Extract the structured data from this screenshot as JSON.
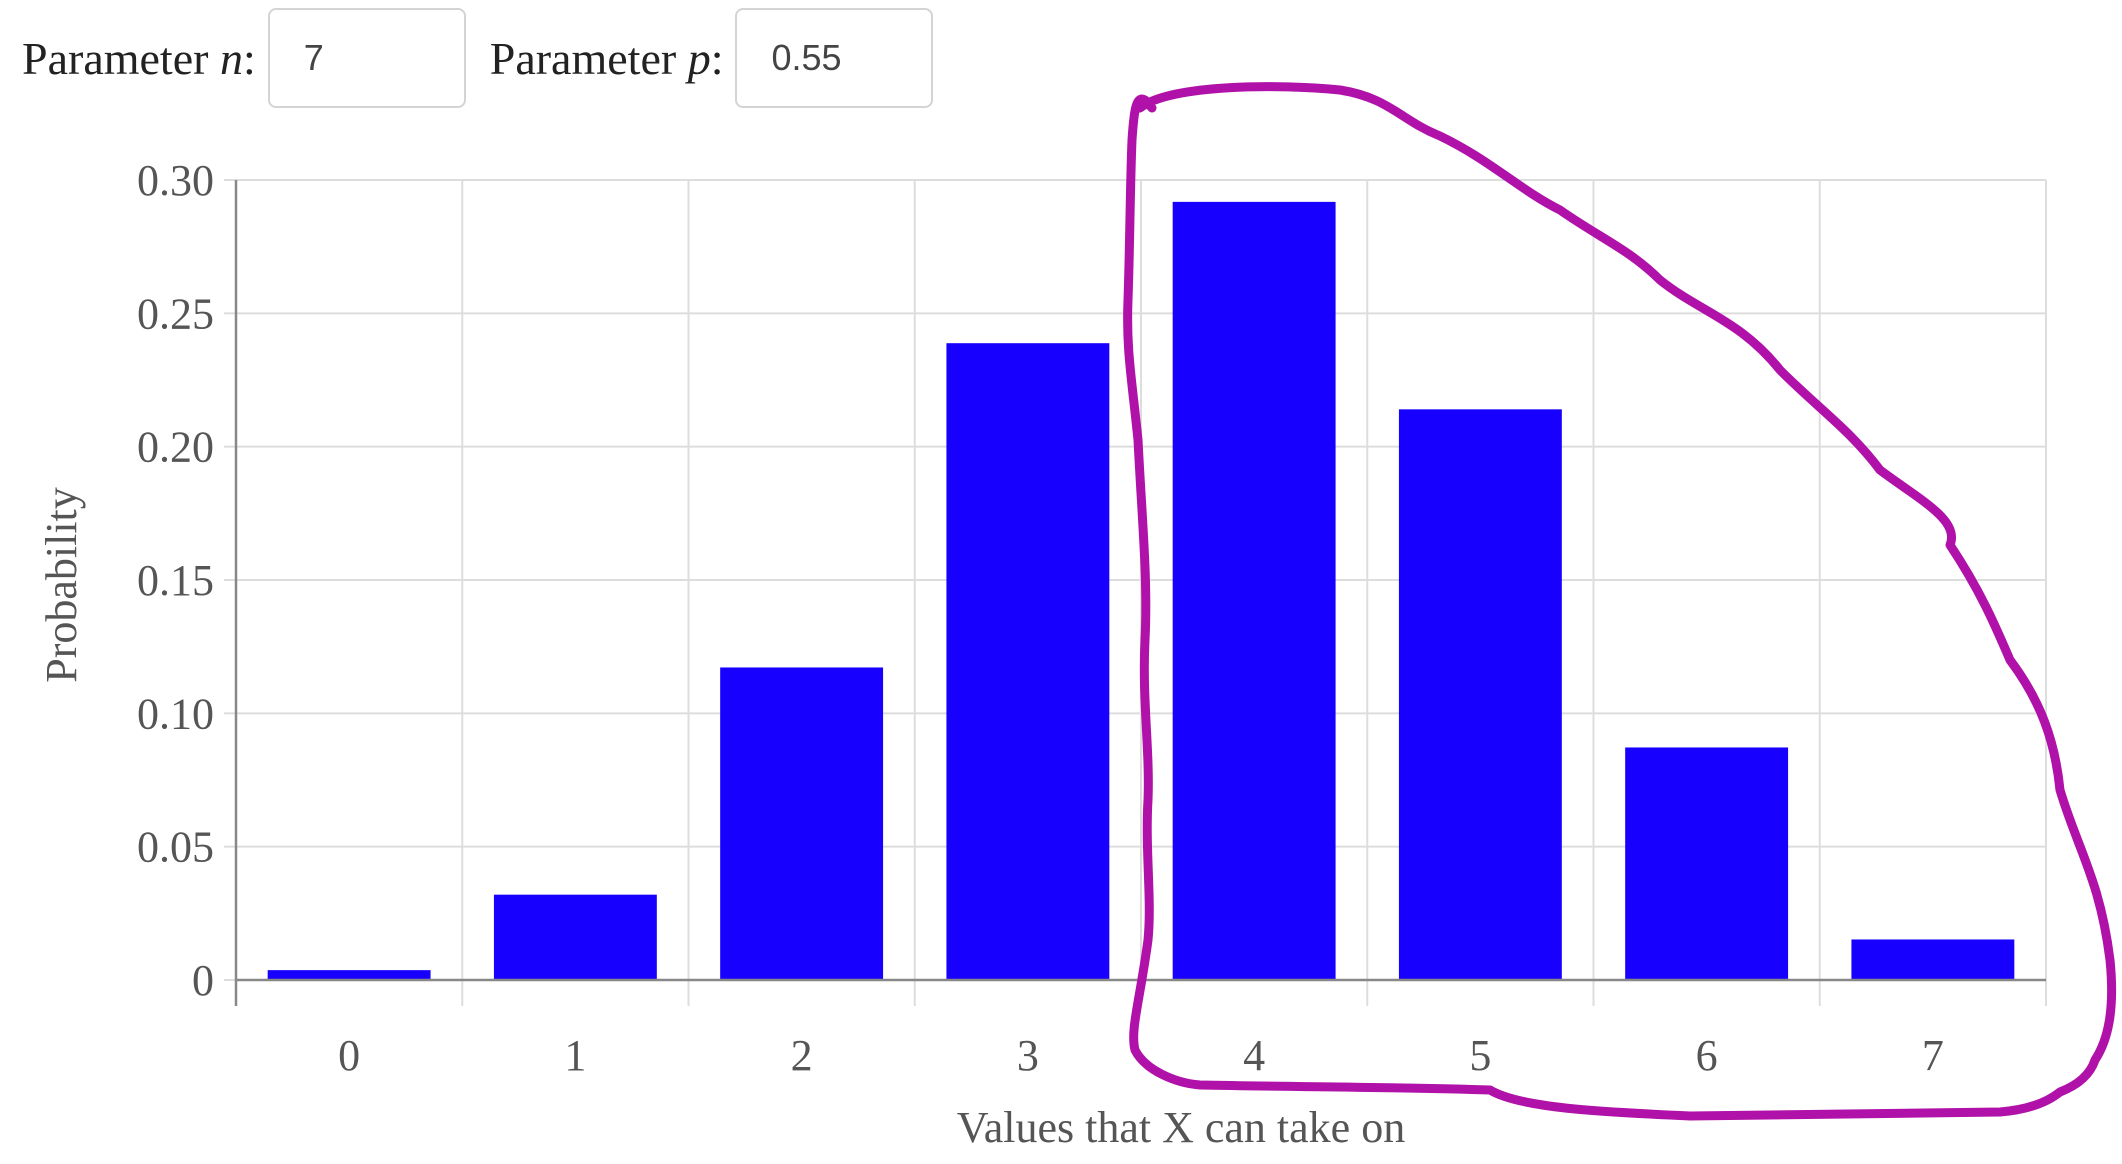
{
  "controls": {
    "n_label_prefix": "Parameter ",
    "n_label_var": "n",
    "n_label_suffix": ":",
    "n_value": "7",
    "p_label_prefix": "Parameter ",
    "p_label_var": "p",
    "p_label_suffix": ":",
    "p_value": "0.55"
  },
  "colors": {
    "bar": "#1800ff",
    "grid": "#dddddd",
    "axis": "#888888",
    "annotation": "#b011a8"
  },
  "chart_data": {
    "type": "bar",
    "categories": [
      "0",
      "1",
      "2",
      "3",
      "4",
      "5",
      "6",
      "7"
    ],
    "values": [
      0.0037,
      0.032,
      0.1172,
      0.2388,
      0.2918,
      0.214,
      0.0872,
      0.0152
    ],
    "title": "",
    "xlabel": "Values that X can take on",
    "ylabel": "Probability",
    "ylim": [
      0,
      0.3
    ],
    "yticks": [
      0,
      0.05,
      0.1,
      0.15,
      0.2,
      0.25,
      0.3
    ],
    "ytick_labels": [
      "0",
      "0.05",
      "0.10",
      "0.15",
      "0.20",
      "0.25",
      "0.30"
    ],
    "grid": true,
    "legend": "none",
    "annotation": {
      "type": "hand-drawn-outline",
      "encloses_categories": [
        "4",
        "5",
        "6",
        "7"
      ]
    }
  }
}
